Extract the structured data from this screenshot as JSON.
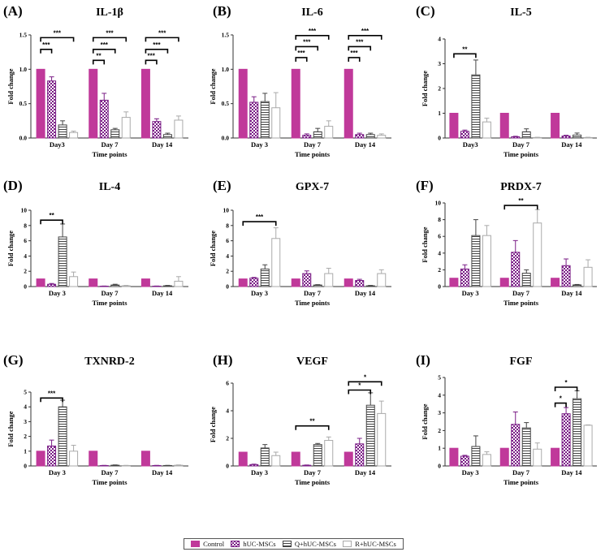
{
  "figure": {
    "colors": {
      "control": "#c0399a",
      "hucmsc": "#7a1d86",
      "q": "#444444",
      "r": "#aaaaaa",
      "axis": "#333333",
      "sig": "#000000"
    },
    "legend": [
      {
        "name": "Control",
        "style": "solid"
      },
      {
        "name": "hUC-MSCs",
        "style": "check"
      },
      {
        "name": "Q+hUC-MSCs",
        "style": "hlines"
      },
      {
        "name": "R+hUC-MSCs",
        "style": "outline"
      }
    ]
  },
  "chart_data": [
    {
      "letter": "(A)",
      "title": "IL-1β",
      "type": "bar",
      "categories": [
        "Day3",
        "Day 7",
        "Day 14"
      ],
      "ylabel": "Fold change",
      "xlabel": "Time points",
      "ylim": [
        0,
        1.5
      ],
      "yticks": [
        "0.0",
        "0.5",
        "1.0",
        "1.5"
      ],
      "series": [
        {
          "name": "Control",
          "values": [
            1.0,
            1.0,
            1.0
          ],
          "errors": [
            0,
            0,
            0
          ]
        },
        {
          "name": "hUC-MSCs",
          "values": [
            0.83,
            0.55,
            0.24
          ],
          "errors": [
            0.06,
            0.1,
            0.04
          ]
        },
        {
          "name": "Q+hUC-MSCs",
          "values": [
            0.19,
            0.12,
            0.05
          ],
          "errors": [
            0.06,
            0.02,
            0.02
          ]
        },
        {
          "name": "R+hUC-MSCs",
          "values": [
            0.08,
            0.3,
            0.26
          ],
          "errors": [
            0.02,
            0.08,
            0.06
          ]
        }
      ],
      "significance": [
        {
          "cat": 0,
          "from": 0,
          "to": 1,
          "label": "***",
          "level": 1.29
        },
        {
          "cat": 0,
          "from": 0,
          "to": 3,
          "label": "***",
          "level": 1.46
        },
        {
          "cat": 1,
          "from": 0,
          "to": 1,
          "label": "**",
          "level": 1.13
        },
        {
          "cat": 1,
          "from": 0,
          "to": 2,
          "label": "***",
          "level": 1.29
        },
        {
          "cat": 1,
          "from": 0,
          "to": 3,
          "label": "***",
          "level": 1.46
        },
        {
          "cat": 2,
          "from": 0,
          "to": 1,
          "label": "***",
          "level": 1.13
        },
        {
          "cat": 2,
          "from": 0,
          "to": 2,
          "label": "***",
          "level": 1.29
        },
        {
          "cat": 2,
          "from": 0,
          "to": 3,
          "label": "***",
          "level": 1.46
        }
      ]
    },
    {
      "letter": "(B)",
      "title": "IL-6",
      "type": "bar",
      "categories": [
        "Day 3",
        "Day 7",
        "Day 14"
      ],
      "ylabel": "Fold change",
      "xlabel": "Time points",
      "ylim": [
        0,
        1.5
      ],
      "yticks": [
        "0.0",
        "0.5",
        "1.0",
        "1.5"
      ],
      "series": [
        {
          "name": "Control",
          "values": [
            1.0,
            1.0,
            1.0
          ],
          "errors": [
            0,
            0,
            0
          ]
        },
        {
          "name": "hUC-MSCs",
          "values": [
            0.52,
            0.04,
            0.05
          ],
          "errors": [
            0.08,
            0.02,
            0.02
          ]
        },
        {
          "name": "Q+hUC-MSCs",
          "values": [
            0.53,
            0.09,
            0.05
          ],
          "errors": [
            0.12,
            0.05,
            0.02
          ]
        },
        {
          "name": "R+hUC-MSCs",
          "values": [
            0.44,
            0.17,
            0.04
          ],
          "errors": [
            0.22,
            0.08,
            0.02
          ]
        }
      ],
      "significance": [
        {
          "cat": 1,
          "from": 0,
          "to": 1,
          "label": "***",
          "level": 1.17
        },
        {
          "cat": 1,
          "from": 0,
          "to": 2,
          "label": "***",
          "level": 1.33
        },
        {
          "cat": 1,
          "from": 0,
          "to": 3,
          "label": "***",
          "level": 1.49
        },
        {
          "cat": 2,
          "from": 0,
          "to": 1,
          "label": "***",
          "level": 1.17
        },
        {
          "cat": 2,
          "from": 0,
          "to": 2,
          "label": "***",
          "level": 1.33
        },
        {
          "cat": 2,
          "from": 0,
          "to": 3,
          "label": "***",
          "level": 1.49
        }
      ]
    },
    {
      "letter": "(C)",
      "title": "IL-5",
      "type": "bar",
      "categories": [
        "Day3",
        "Day 7",
        "Day 14"
      ],
      "ylabel": "Fold change",
      "xlabel": "Time points",
      "ylim": [
        0,
        4
      ],
      "yticks": [
        "0",
        "1",
        "2",
        "3",
        "4"
      ],
      "series": [
        {
          "name": "Control",
          "values": [
            1.0,
            1.0,
            1.0
          ],
          "errors": [
            0,
            0,
            0
          ]
        },
        {
          "name": "hUC-MSCs",
          "values": [
            0.27,
            0.05,
            0.08
          ],
          "errors": [
            0.05,
            0.02,
            0.03
          ]
        },
        {
          "name": "Q+hUC-MSCs",
          "values": [
            2.55,
            0.25,
            0.12
          ],
          "errors": [
            0.6,
            0.12,
            0.08
          ]
        },
        {
          "name": "R+hUC-MSCs",
          "values": [
            0.65,
            0.02,
            0.02
          ],
          "errors": [
            0.15,
            0.01,
            0.01
          ]
        }
      ],
      "significance": [
        {
          "cat": 0,
          "from": 0,
          "to": 2,
          "label": "**",
          "level": 3.4
        }
      ]
    },
    {
      "letter": "(D)",
      "title": "IL-4",
      "type": "bar",
      "categories": [
        "Day 3",
        "Day 7",
        "Day 14"
      ],
      "ylabel": "Fold change",
      "xlabel": "Time points",
      "ylim": [
        0,
        10
      ],
      "yticks": [
        "0",
        "2",
        "4",
        "6",
        "8",
        "10"
      ],
      "series": [
        {
          "name": "Control",
          "values": [
            1.0,
            1.0,
            1.0
          ],
          "errors": [
            0,
            0,
            0
          ]
        },
        {
          "name": "hUC-MSCs",
          "values": [
            0.3,
            0.05,
            0.05
          ],
          "errors": [
            0.1,
            0.02,
            0.02
          ]
        },
        {
          "name": "Q+hUC-MSCs",
          "values": [
            6.5,
            0.2,
            0.1
          ],
          "errors": [
            1.7,
            0.1,
            0.05
          ]
        },
        {
          "name": "R+hUC-MSCs",
          "values": [
            1.3,
            0.1,
            0.7
          ],
          "errors": [
            0.6,
            0.05,
            0.6
          ]
        }
      ],
      "significance": [
        {
          "cat": 0,
          "from": 0,
          "to": 2,
          "label": "**",
          "level": 8.7
        }
      ]
    },
    {
      "letter": "(E)",
      "title": "GPX-7",
      "type": "bar",
      "categories": [
        "Day 3",
        "Day 7",
        "Day 14"
      ],
      "ylabel": "Fold change",
      "xlabel": "Time points",
      "ylim": [
        0,
        10
      ],
      "yticks": [
        "0",
        "2",
        "4",
        "6",
        "8",
        "10"
      ],
      "series": [
        {
          "name": "Control",
          "values": [
            1.0,
            1.0,
            1.0
          ],
          "errors": [
            0,
            0,
            0
          ]
        },
        {
          "name": "hUC-MSCs",
          "values": [
            1.1,
            1.7,
            0.8
          ],
          "errors": [
            0.1,
            0.35,
            0.15
          ]
        },
        {
          "name": "Q+hUC-MSCs",
          "values": [
            2.3,
            0.2,
            0.1
          ],
          "errors": [
            0.55,
            0.05,
            0.05
          ]
        },
        {
          "name": "R+hUC-MSCs",
          "values": [
            6.3,
            1.7,
            1.7
          ],
          "errors": [
            1.4,
            0.7,
            0.5
          ]
        }
      ],
      "significance": [
        {
          "cat": 0,
          "from": 0,
          "to": 3,
          "label": "***",
          "level": 8.5
        }
      ]
    },
    {
      "letter": "(F)",
      "title": "PRDX-7",
      "type": "bar",
      "categories": [
        "Day 3",
        "Day 7",
        "Day 14"
      ],
      "ylabel": "Fold change",
      "xlabel": "Time points",
      "ylim": [
        0,
        10
      ],
      "yticks": [
        "0",
        "2",
        "4",
        "6",
        "8",
        "10"
      ],
      "series": [
        {
          "name": "Control",
          "values": [
            1.0,
            1.0,
            1.0
          ],
          "errors": [
            0,
            0,
            0
          ]
        },
        {
          "name": "hUC-MSCs",
          "values": [
            2.1,
            4.1,
            2.5
          ],
          "errors": [
            0.5,
            1.4,
            0.8
          ]
        },
        {
          "name": "Q+hUC-MSCs",
          "values": [
            6.1,
            1.6,
            0.2
          ],
          "errors": [
            1.9,
            0.4,
            0.05
          ]
        },
        {
          "name": "R+hUC-MSCs",
          "values": [
            6.1,
            7.6,
            2.3
          ],
          "errors": [
            1.2,
            1.6,
            0.9
          ]
        }
      ],
      "significance": [
        {
          "cat": 1,
          "from": 0,
          "to": 3,
          "label": "**",
          "level": 9.7
        }
      ]
    },
    {
      "letter": "(G)",
      "title": "TXNRD-2",
      "type": "bar",
      "categories": [
        "Day 3",
        "Day 7",
        "Day 14"
      ],
      "ylabel": "Fold change",
      "xlabel": "Time points",
      "ylim": [
        0,
        5
      ],
      "yticks": [
        "0",
        "1",
        "2",
        "3",
        "4",
        "5"
      ],
      "series": [
        {
          "name": "Control",
          "values": [
            1.0,
            1.0,
            1.0
          ],
          "errors": [
            0,
            0,
            0
          ]
        },
        {
          "name": "hUC-MSCs",
          "values": [
            1.35,
            0.03,
            0.03
          ],
          "errors": [
            0.4,
            0.01,
            0.01
          ]
        },
        {
          "name": "Q+hUC-MSCs",
          "values": [
            4.0,
            0.05,
            0.03
          ],
          "errors": [
            0.45,
            0.02,
            0.01
          ]
        },
        {
          "name": "R+hUC-MSCs",
          "values": [
            1.0,
            0.03,
            0.05
          ],
          "errors": [
            0.4,
            0.01,
            0.02
          ]
        }
      ],
      "significance": [
        {
          "cat": 0,
          "from": 0,
          "to": 2,
          "label": "***",
          "level": 4.6
        }
      ]
    },
    {
      "letter": "(H)",
      "title": "VEGF",
      "type": "bar",
      "categories": [
        "Day 3",
        "Day 7",
        "Day 14"
      ],
      "ylabel": "Fold change",
      "xlabel": "Time points",
      "ylim": [
        0,
        6
      ],
      "yticks": [
        "0",
        "2",
        "4",
        "6"
      ],
      "series": [
        {
          "name": "Control",
          "values": [
            1.0,
            1.0,
            1.0
          ],
          "errors": [
            0,
            0,
            0
          ]
        },
        {
          "name": "hUC-MSCs",
          "values": [
            0.1,
            0.05,
            1.6
          ],
          "errors": [
            0.03,
            0.02,
            0.4
          ]
        },
        {
          "name": "Q+hUC-MSCs",
          "values": [
            1.3,
            1.55,
            4.4
          ],
          "errors": [
            0.25,
            0.08,
            0.9
          ]
        },
        {
          "name": "R+hUC-MSCs",
          "values": [
            0.75,
            1.85,
            3.8
          ],
          "errors": [
            0.25,
            0.25,
            0.9
          ]
        }
      ],
      "significance": [
        {
          "cat": 1,
          "from": 0,
          "to": 3,
          "label": "**",
          "level": 2.9
        },
        {
          "cat": 2,
          "from": 0,
          "to": 2,
          "label": "*",
          "level": 5.5
        },
        {
          "cat": 2,
          "from": 0,
          "to": 3,
          "label": "*",
          "level": 6.1
        }
      ]
    },
    {
      "letter": "(I)",
      "title": "FGF",
      "type": "bar",
      "categories": [
        "Day 3",
        "Day 7",
        "Day 14"
      ],
      "ylabel": "Fold change",
      "xlabel": "Time points",
      "ylim": [
        0,
        5
      ],
      "yticks": [
        "0",
        "1",
        "2",
        "3",
        "4",
        "5"
      ],
      "series": [
        {
          "name": "Control",
          "values": [
            1.0,
            1.0,
            1.0
          ],
          "errors": [
            0,
            0,
            0
          ]
        },
        {
          "name": "hUC-MSCs",
          "values": [
            0.55,
            2.35,
            2.95
          ],
          "errors": [
            0.05,
            0.7,
            0.35
          ]
        },
        {
          "name": "Q+hUC-MSCs",
          "values": [
            1.1,
            2.15,
            3.8
          ],
          "errors": [
            0.6,
            0.3,
            0.45
          ]
        },
        {
          "name": "R+hUC-MSCs",
          "values": [
            0.65,
            0.95,
            2.3
          ],
          "errors": [
            0.15,
            0.35,
            0.02
          ]
        }
      ],
      "significance": [
        {
          "cat": 2,
          "from": 0,
          "to": 1,
          "label": "*",
          "level": 3.55
        },
        {
          "cat": 2,
          "from": 0,
          "to": 2,
          "label": "*",
          "level": 4.45
        }
      ]
    }
  ]
}
